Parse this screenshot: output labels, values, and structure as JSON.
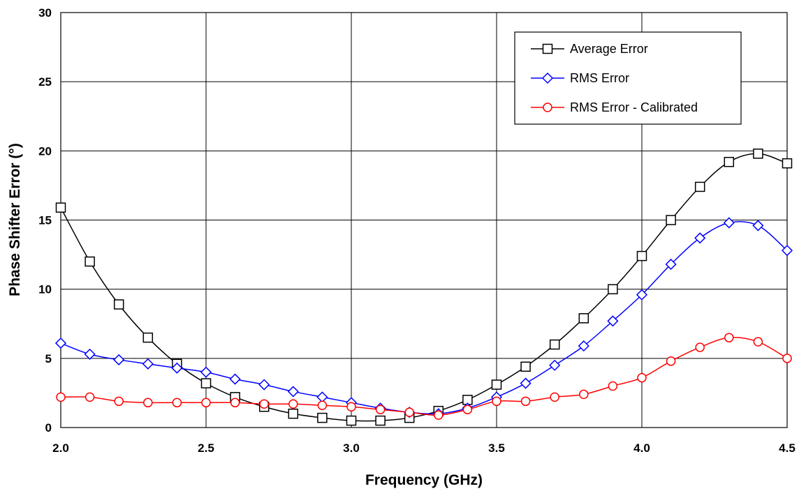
{
  "chart_data": {
    "type": "line",
    "xlabel": "Frequency (GHz)",
    "ylabel": "Phase Shifter Error (°)",
    "xlim": [
      2.0,
      4.5
    ],
    "ylim": [
      0,
      30
    ],
    "x_ticks": [
      "2.0",
      "2.5",
      "3.0",
      "3.5",
      "4.0",
      "4.5"
    ],
    "y_ticks": [
      "0",
      "5",
      "10",
      "15",
      "20",
      "25",
      "30"
    ],
    "grid": true,
    "legend_position": "top-right",
    "x": [
      2.0,
      2.1,
      2.2,
      2.3,
      2.4,
      2.5,
      2.6,
      2.7,
      2.8,
      2.9,
      3.0,
      3.1,
      3.2,
      3.3,
      3.4,
      3.5,
      3.6,
      3.7,
      3.8,
      3.9,
      4.0,
      4.1,
      4.2,
      4.3,
      4.4,
      4.5
    ],
    "series": [
      {
        "name": "Average Error",
        "color": "#000000",
        "marker": "square",
        "values": [
          15.9,
          12.0,
          8.9,
          6.5,
          4.6,
          3.2,
          2.2,
          1.5,
          1.0,
          0.7,
          0.5,
          0.5,
          0.7,
          1.2,
          2.0,
          3.1,
          4.4,
          6.0,
          7.9,
          10.0,
          12.4,
          15.0,
          17.4,
          19.2,
          19.8,
          19.1
        ]
      },
      {
        "name": "RMS Error",
        "color": "#0000ff",
        "marker": "diamond",
        "values": [
          6.1,
          5.3,
          4.9,
          4.6,
          4.3,
          4.0,
          3.5,
          3.1,
          2.6,
          2.2,
          1.8,
          1.4,
          1.1,
          1.0,
          1.4,
          2.2,
          3.2,
          4.5,
          5.9,
          7.7,
          9.6,
          11.8,
          13.7,
          14.8,
          14.6,
          12.8
        ]
      },
      {
        "name": "RMS Error - Calibrated",
        "color": "#ff0000",
        "marker": "circle",
        "values": [
          2.2,
          2.2,
          1.9,
          1.8,
          1.8,
          1.8,
          1.8,
          1.7,
          1.7,
          1.6,
          1.5,
          1.3,
          1.1,
          0.9,
          1.3,
          1.9,
          1.9,
          2.2,
          2.4,
          3.0,
          3.6,
          4.8,
          5.8,
          6.5,
          6.2,
          5.0
        ]
      }
    ]
  }
}
